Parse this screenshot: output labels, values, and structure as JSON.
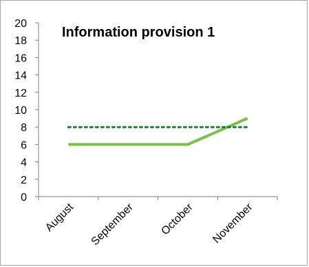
{
  "chart_data": {
    "type": "line",
    "title": "Information provision 1",
    "xlabel": "",
    "ylabel": "",
    "categories": [
      "August",
      "September",
      "October",
      "November"
    ],
    "ylim": [
      0,
      20
    ],
    "yticks": [
      0,
      2,
      4,
      6,
      8,
      10,
      12,
      14,
      16,
      18,
      20
    ],
    "grid": false,
    "legend": "none",
    "series": [
      {
        "values": [
          6,
          6,
          6,
          9
        ],
        "color": "#7ac143",
        "style": "solid"
      },
      {
        "values": [
          8,
          8,
          8,
          8
        ],
        "color": "#1e7b34",
        "style": "dotted"
      }
    ]
  }
}
